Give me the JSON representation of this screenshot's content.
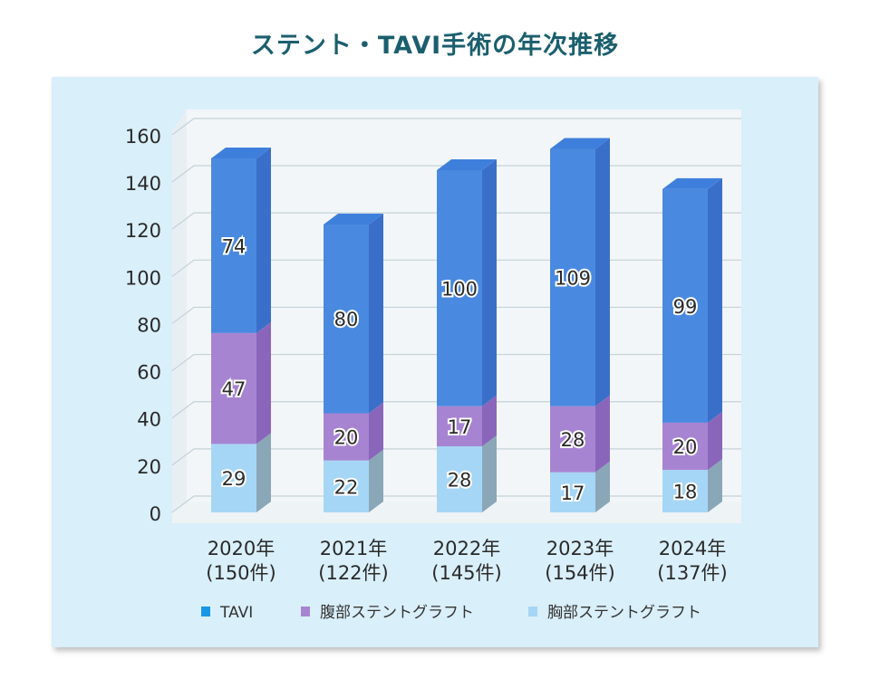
{
  "chart_data": {
    "type": "bar",
    "stacked": true,
    "title": "ステント・TAVI手術の年次推移",
    "categories": [
      "2020年",
      "2021年",
      "2022年",
      "2023年",
      "2024年"
    ],
    "totals_labels": [
      "(150件)",
      "(122件)",
      "(145件)",
      "(154件)",
      "(137件)"
    ],
    "series": [
      {
        "name": "胸部ステントグラフト",
        "values": [
          29,
          22,
          28,
          17,
          18
        ],
        "color": "#a6d6f5",
        "side": "#8aa7b8"
      },
      {
        "name": "腹部ステントグラフト",
        "values": [
          47,
          20,
          17,
          28,
          20
        ],
        "color": "#a784d2",
        "side": "#8a66bb"
      },
      {
        "name": "TAVI",
        "values": [
          74,
          80,
          100,
          109,
          99
        ],
        "color": "#4a89e0",
        "side": "#3a6fc9"
      }
    ],
    "legend_order": [
      "TAVI",
      "腹部ステントグラフト",
      "胸部ステントグラフト"
    ],
    "legend_colors": [
      "#1a96e6",
      "#a784d2",
      "#a6d6f5"
    ],
    "yticks": [
      0,
      20,
      40,
      60,
      80,
      100,
      120,
      140,
      160
    ],
    "ylim": [
      0,
      160
    ],
    "grid": true,
    "legend_position": "bottom"
  }
}
